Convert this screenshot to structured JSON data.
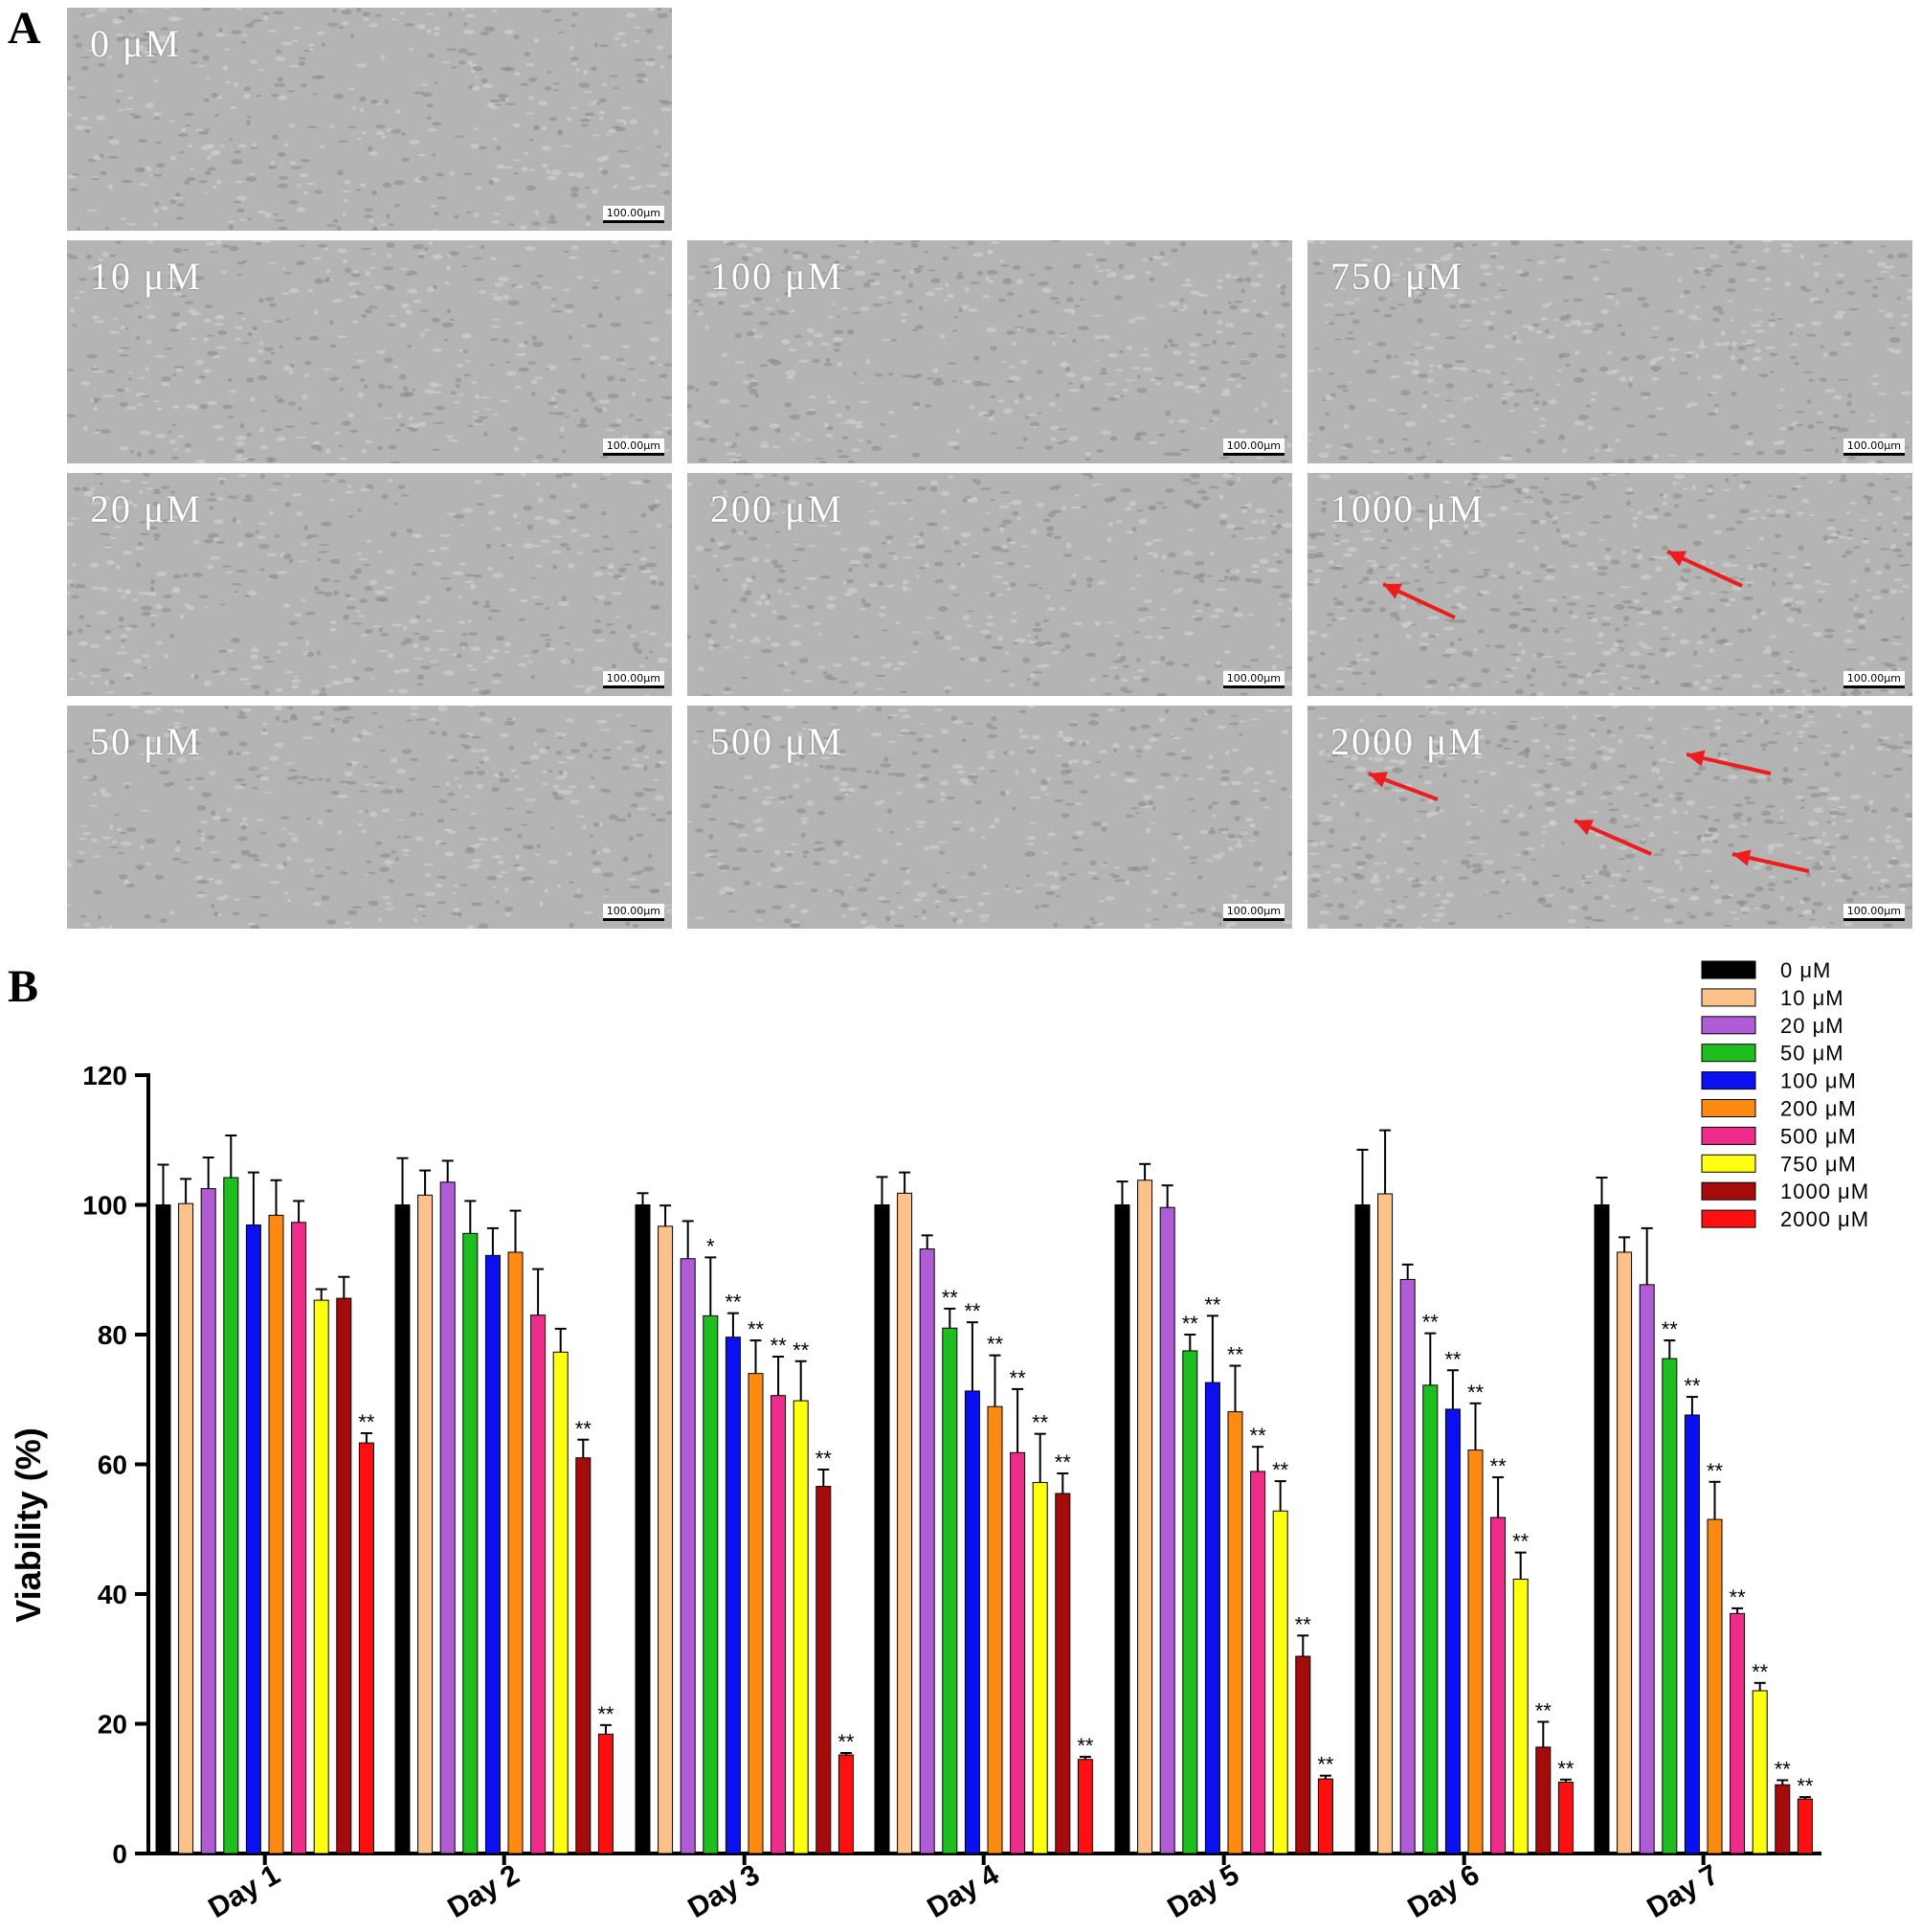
{
  "panel_labels": {
    "a": "A",
    "b": "B"
  },
  "micrographs": [
    {
      "concentration": "0 μM",
      "scale_bar": "100.00μm",
      "arrows": 0
    },
    {
      "concentration": "10 μM",
      "scale_bar": "100.00μm",
      "arrows": 0
    },
    {
      "concentration": "100 μM",
      "scale_bar": "100.00μm",
      "arrows": 0
    },
    {
      "concentration": "750 μM",
      "scale_bar": "100.00μm",
      "arrows": 0
    },
    {
      "concentration": "20 μM",
      "scale_bar": "100.00μm",
      "arrows": 0
    },
    {
      "concentration": "200 μM",
      "scale_bar": "100.00μm",
      "arrows": 0
    },
    {
      "concentration": "1000 μM",
      "scale_bar": "100.00μm",
      "arrows": 2
    },
    {
      "concentration": "50 μM",
      "scale_bar": "100.00μm",
      "arrows": 0
    },
    {
      "concentration": "500 μM",
      "scale_bar": "100.00μm",
      "arrows": 0
    },
    {
      "concentration": "2000 μM",
      "scale_bar": "100.00μm",
      "arrows": 4
    }
  ],
  "colors": {
    "arrow": "#ee1c1c",
    "micrograph_bg": "#b4b4b4"
  },
  "chart_data": {
    "type": "bar",
    "title": "",
    "xlabel": "",
    "ylabel": "Viability (%)",
    "ylim": [
      0,
      120
    ],
    "yticks": [
      0,
      20,
      40,
      60,
      80,
      100,
      120
    ],
    "grid": false,
    "legend_position": "top-right",
    "categories": [
      "Day 1",
      "Day 2",
      "Day 3",
      "Day 4",
      "Day 5",
      "Day 6",
      "Day 7"
    ],
    "series": [
      {
        "name": "0 μM",
        "color": "#000000",
        "values": [
          100,
          100,
          100,
          100,
          100,
          100,
          100
        ],
        "errors": [
          6.2,
          7.2,
          1.8,
          4.3,
          3.6,
          8.5,
          4.2
        ],
        "sig": [
          "",
          "",
          "",
          "",
          "",
          "",
          ""
        ]
      },
      {
        "name": "10 μM",
        "color": "#fdc28a",
        "values": [
          100.2,
          101.5,
          96.7,
          101.8,
          103.8,
          101.7,
          92.7
        ],
        "errors": [
          3.8,
          3.8,
          3.2,
          3.2,
          2.5,
          9.8,
          2.3
        ],
        "sig": [
          "",
          "",
          "",
          "",
          "",
          "",
          ""
        ]
      },
      {
        "name": "20 μM",
        "color": "#b05cd6",
        "values": [
          102.5,
          103.5,
          91.7,
          93.2,
          99.6,
          88.5,
          87.7
        ],
        "errors": [
          4.8,
          3.3,
          5.8,
          2.1,
          3.4,
          2.3,
          8.7
        ],
        "sig": [
          "",
          "",
          "",
          "",
          "",
          "",
          ""
        ]
      },
      {
        "name": "50 μM",
        "color": "#1fbe1f",
        "values": [
          104.2,
          95.6,
          82.9,
          81.0,
          77.5,
          72.2,
          76.3
        ],
        "errors": [
          6.5,
          5.0,
          9.0,
          3.0,
          2.5,
          8.0,
          2.8
        ],
        "sig": [
          "",
          "",
          "*",
          "**",
          "**",
          "**",
          "**"
        ]
      },
      {
        "name": "100 μM",
        "color": "#0a10f0",
        "values": [
          96.9,
          92.2,
          79.6,
          71.3,
          72.6,
          68.5,
          67.6
        ],
        "errors": [
          8.1,
          4.2,
          3.7,
          10.6,
          10.3,
          6.0,
          2.8
        ],
        "sig": [
          "",
          "",
          "**",
          "**",
          "**",
          "**",
          "**"
        ]
      },
      {
        "name": "200 μM",
        "color": "#ff8a12",
        "values": [
          98.4,
          92.7,
          74.0,
          68.9,
          68.1,
          62.2,
          51.5
        ],
        "errors": [
          5.4,
          6.4,
          5.1,
          7.9,
          7.1,
          7.2,
          5.8
        ],
        "sig": [
          "",
          "",
          "**",
          "**",
          "**",
          "**",
          "**"
        ]
      },
      {
        "name": "500 μM",
        "color": "#ee2c89",
        "values": [
          97.3,
          83.0,
          70.6,
          61.8,
          58.9,
          51.8,
          37.0
        ],
        "errors": [
          3.3,
          7.1,
          6.0,
          9.8,
          3.8,
          6.2,
          0.8
        ],
        "sig": [
          "",
          "",
          "**",
          "**",
          "**",
          "**",
          "**"
        ]
      },
      {
        "name": "750 μM",
        "color": "#ffff10",
        "values": [
          85.3,
          77.3,
          69.8,
          57.2,
          52.8,
          42.3,
          25.1
        ],
        "errors": [
          1.7,
          3.6,
          6.1,
          7.5,
          4.6,
          4.1,
          1.2
        ],
        "sig": [
          "",
          "",
          "**",
          "**",
          "**",
          "**",
          "**"
        ]
      },
      {
        "name": "1000 μM",
        "color": "#a50b0b",
        "values": [
          85.6,
          61.0,
          56.6,
          55.5,
          30.4,
          16.4,
          10.6
        ],
        "errors": [
          3.3,
          2.8,
          2.6,
          3.1,
          3.2,
          3.9,
          0.7
        ],
        "sig": [
          "",
          "**",
          "**",
          "**",
          "**",
          "**",
          "**"
        ]
      },
      {
        "name": "2000 μM",
        "color": "#ff1010",
        "values": [
          63.3,
          18.4,
          15.2,
          14.5,
          11.5,
          11.0,
          8.4
        ],
        "errors": [
          1.5,
          1.4,
          0.3,
          0.4,
          0.5,
          0.4,
          0.3
        ],
        "sig": [
          "**",
          "**",
          "**",
          "**",
          "**",
          "**",
          "**"
        ]
      }
    ]
  }
}
